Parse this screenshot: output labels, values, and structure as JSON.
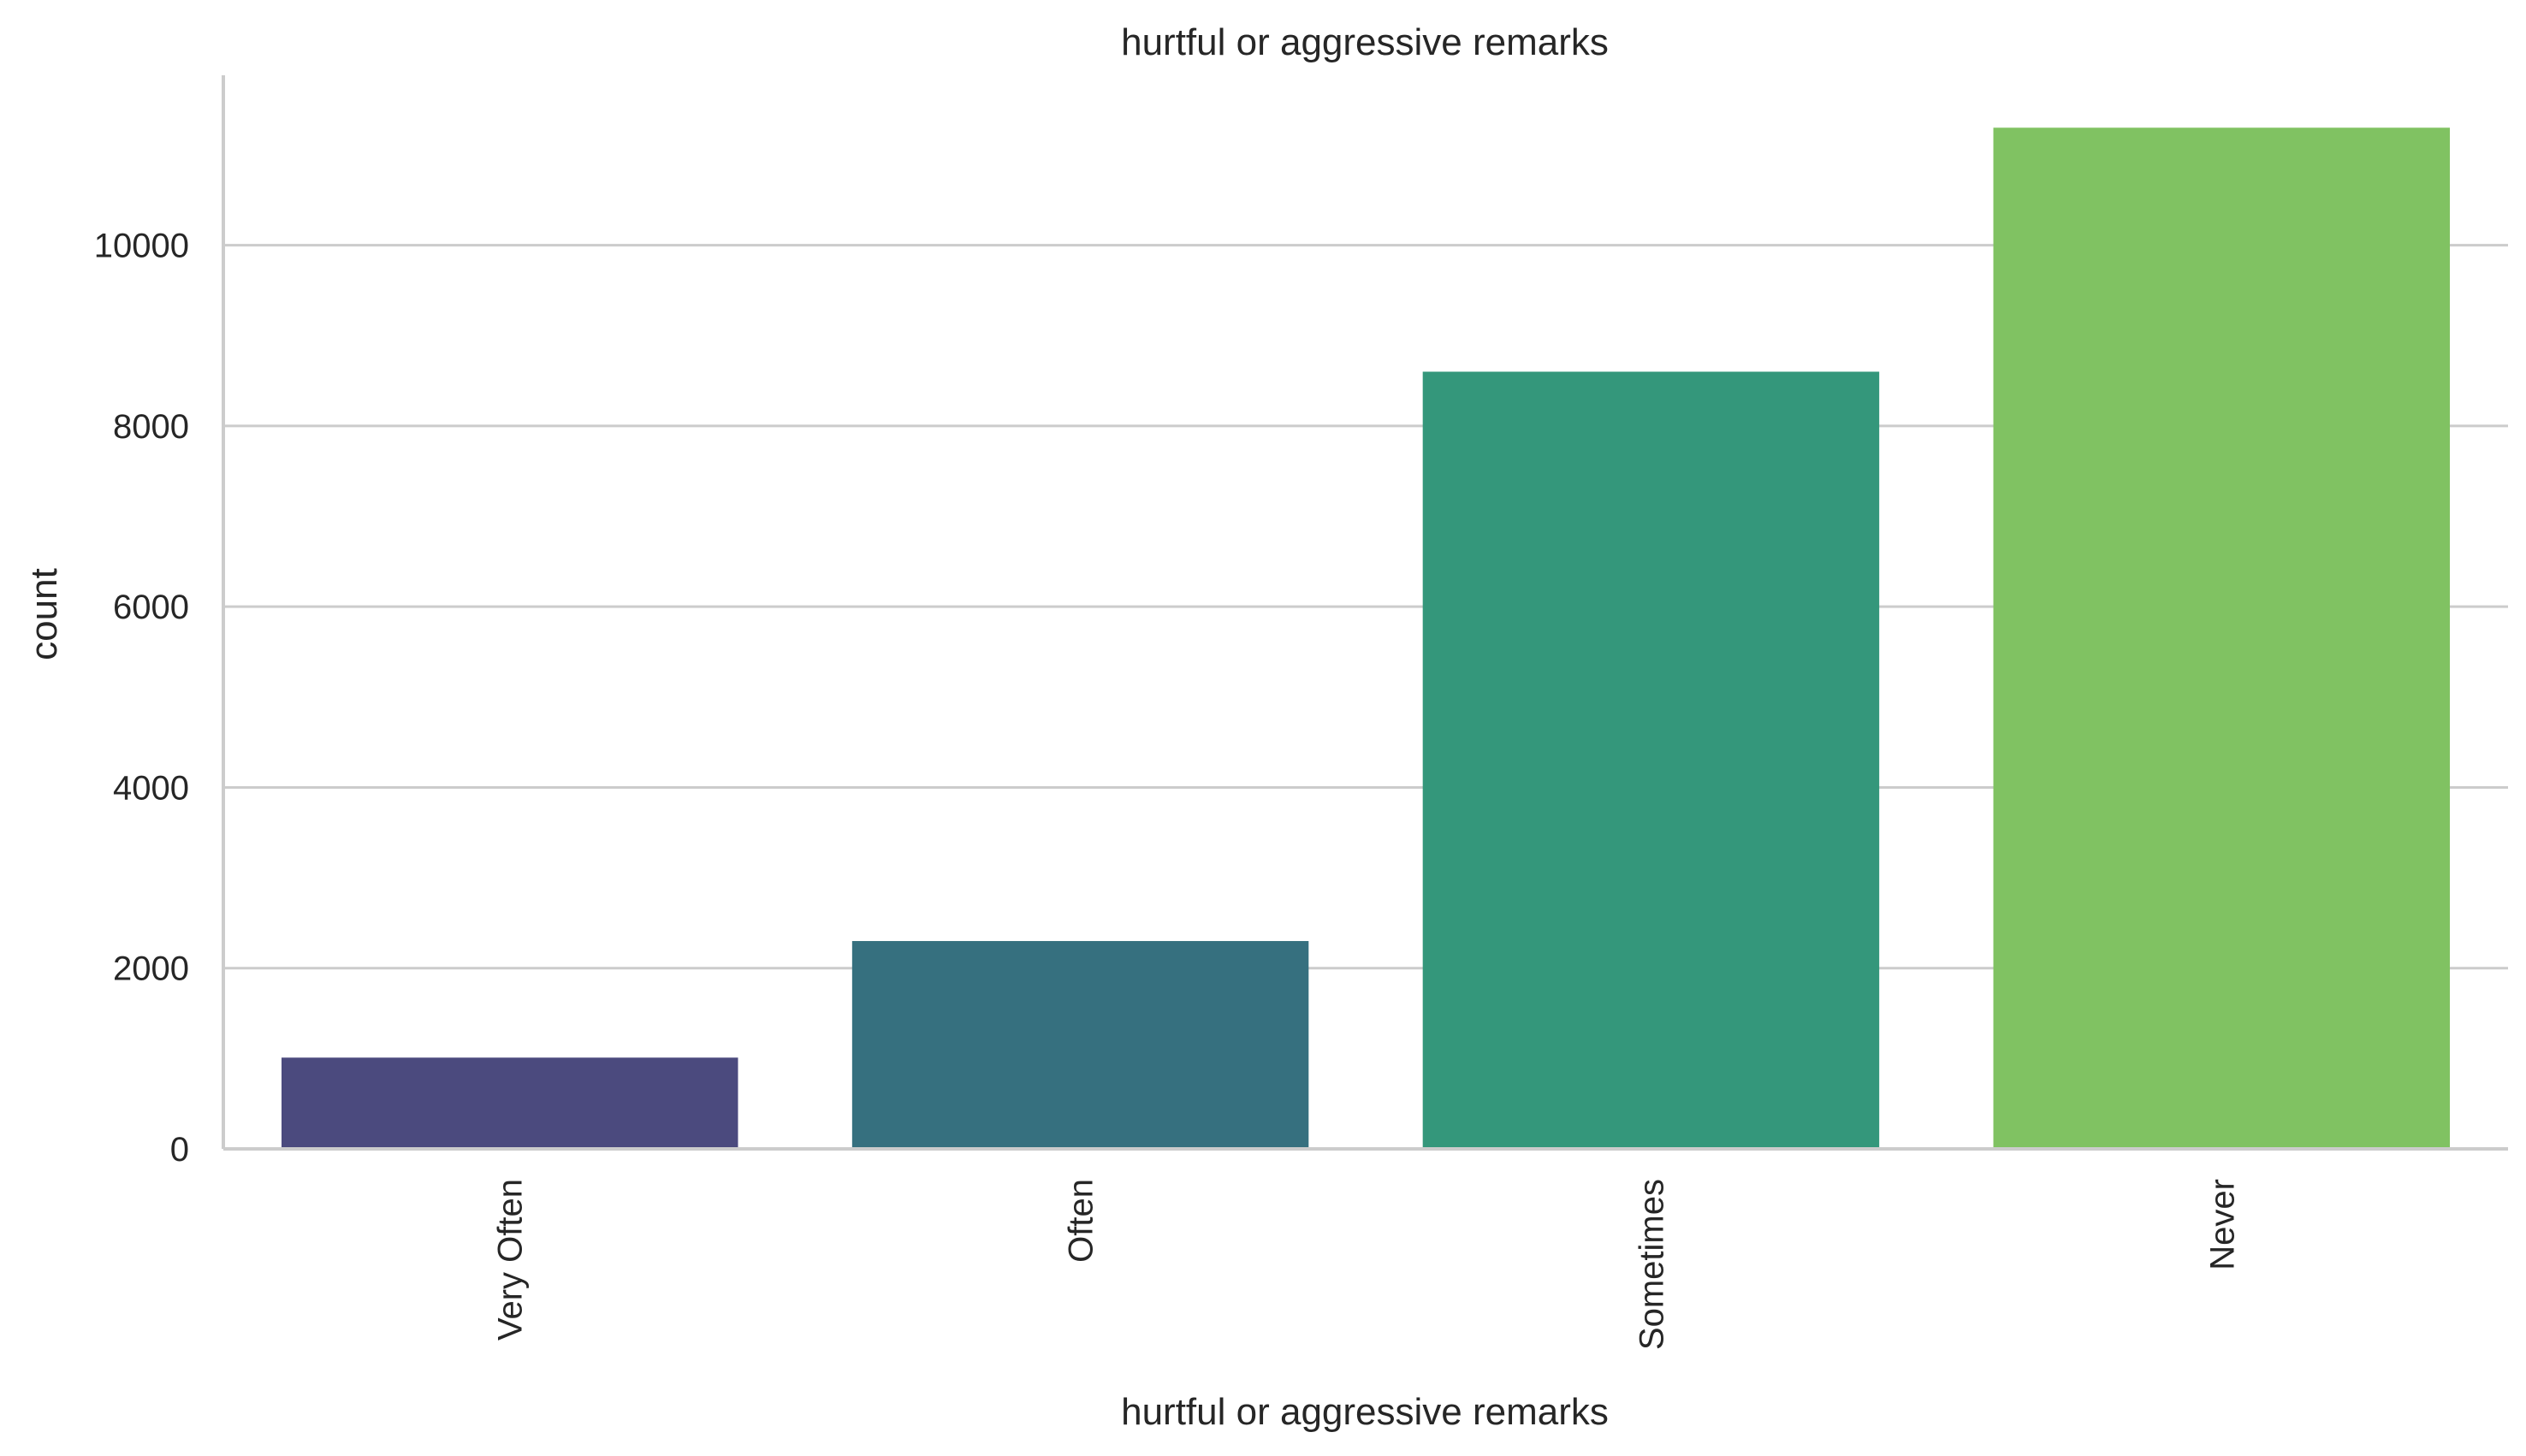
{
  "chart_data": {
    "type": "bar",
    "title": "hurtful or aggressive remarks",
    "xlabel": "hurtful or aggressive remarks",
    "ylabel": "count",
    "categories": [
      "Very Often",
      "Often",
      "Sometimes",
      "Never"
    ],
    "values": [
      1010,
      2300,
      8600,
      11300
    ],
    "colors": [
      "#4b4a7e",
      "#36707f",
      "#34977b",
      "#80c262"
    ],
    "ylim": [
      0,
      11880
    ],
    "yticks": [
      0,
      2000,
      4000,
      6000,
      8000,
      10000
    ],
    "grid": "horizontal",
    "xtick_rotation": "vertical"
  }
}
